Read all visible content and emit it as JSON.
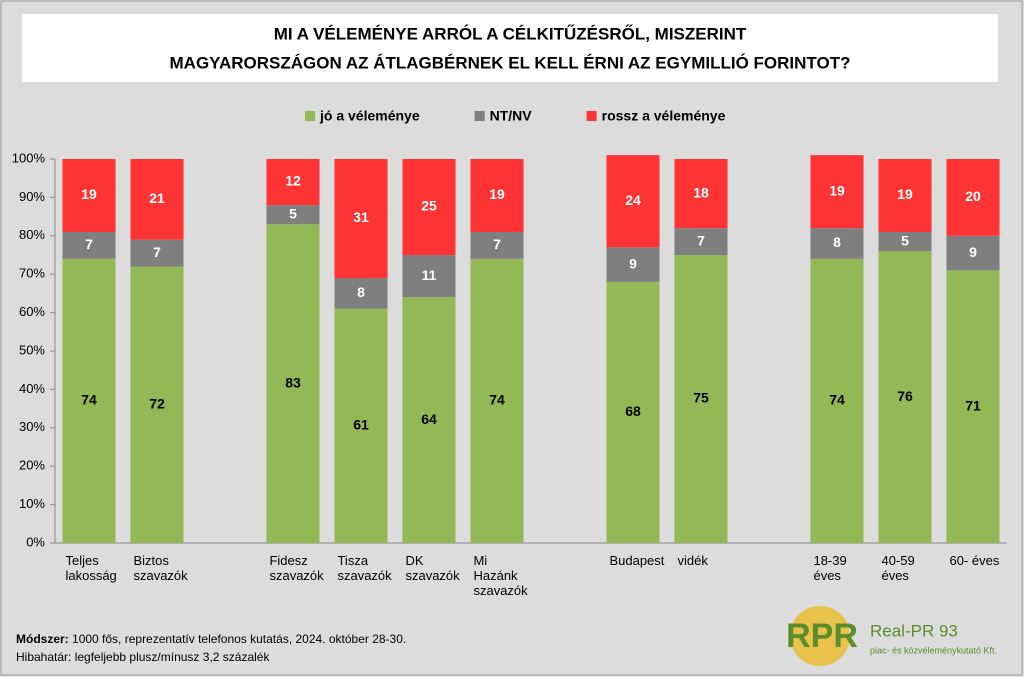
{
  "chart_data": {
    "type": "stacked_bar",
    "title": [
      "MI A VÉLEMÉNYE ARRÓL A CÉLKITŰZÉSRŐL, MISZERINT",
      "MAGYARORSZÁGON AZ ÁTLAGBÉRNEK EL KELL ÉRNI AZ EGYMILLIÓ FORINTOT?"
    ],
    "categories": [
      "Teljes\nlakosság",
      "Biztos\nszavazók",
      null,
      "Fidesz\nszavazók",
      "Tisza\nszavazók",
      "DK\nszavazók",
      "Mi\nHazánk\nszavazók",
      null,
      "Budapest",
      "vidék",
      null,
      "18-39\néves",
      "40-59\néves",
      "60-  éves"
    ],
    "series": [
      {
        "name": "jó a véleménye",
        "color": "#92b955",
        "label_color": "#000000",
        "values": [
          74,
          72,
          null,
          83,
          61,
          64,
          74,
          null,
          68,
          75,
          null,
          74,
          76,
          71
        ]
      },
      {
        "name": "NT/NV",
        "color": "#7f7f7f",
        "label_color": "#ffffff",
        "values": [
          7,
          7,
          null,
          5,
          8,
          11,
          7,
          null,
          9,
          7,
          null,
          8,
          5,
          9
        ]
      },
      {
        "name": "rossz a véleménye",
        "color": "#fe3333",
        "label_color": "#ffffff",
        "values": [
          19,
          21,
          null,
          12,
          31,
          25,
          19,
          null,
          24,
          18,
          null,
          19,
          19,
          20
        ]
      }
    ],
    "ylim": [
      0,
      100
    ],
    "yticks": [
      {
        "value": 0,
        "label": "0%"
      },
      {
        "value": 10,
        "label": "10%"
      },
      {
        "value": 20,
        "label": "20%"
      },
      {
        "value": 30,
        "label": "30%"
      },
      {
        "value": 40,
        "label": "40%"
      },
      {
        "value": 50,
        "label": "50%"
      },
      {
        "value": 60,
        "label": "60%"
      },
      {
        "value": 70,
        "label": "70%"
      },
      {
        "value": 80,
        "label": "80%"
      },
      {
        "value": 90,
        "label": "90%"
      },
      {
        "value": 100,
        "label": "100%"
      }
    ],
    "legend": "top",
    "method_label": "Módszer:",
    "method": "1000 fős, reprezentatív telefonos kutatás, 2024. október 28-30.",
    "error_margin": "Hibahatár: legfeljebb plusz/mínusz 3,2 százalék",
    "logo": {
      "mark": "RPR",
      "name": "Real-PR 93",
      "tagline": "piac- és közvéleménykutató Kft."
    }
  }
}
